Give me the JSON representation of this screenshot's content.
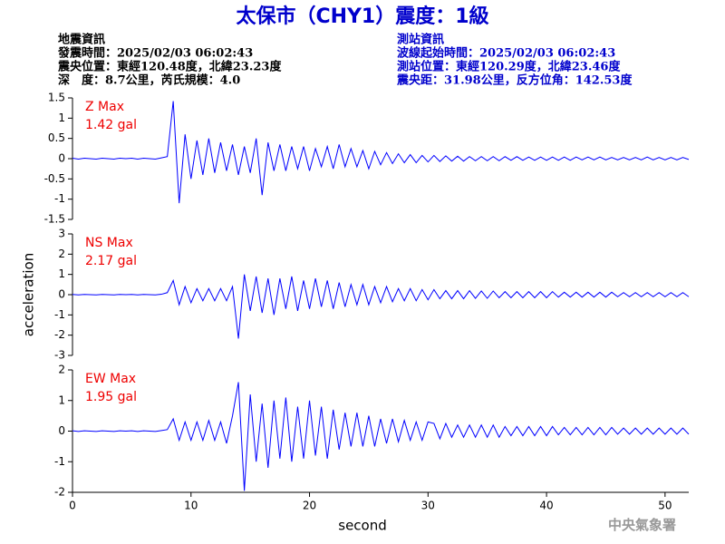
{
  "chart_data": {
    "type": "line",
    "title": "太保市（CHY1）震度：1級",
    "xlabel": "second",
    "ylabel": "acceleration",
    "xlim": [
      0,
      52
    ],
    "xticks": [
      0,
      10,
      20,
      30,
      40,
      50
    ],
    "x": [
      0,
      0.5,
      1,
      1.5,
      2,
      2.5,
      3,
      3.5,
      4,
      4.5,
      5,
      5.5,
      6,
      6.5,
      7,
      7.5,
      8,
      8.5,
      9,
      9.5,
      10,
      10.5,
      11,
      11.5,
      12,
      12.5,
      13,
      13.5,
      14,
      14.5,
      15,
      15.5,
      16,
      16.5,
      17,
      17.5,
      18,
      18.5,
      19,
      19.5,
      20,
      20.5,
      21,
      21.5,
      22,
      22.5,
      23,
      23.5,
      24,
      24.5,
      25,
      25.5,
      26,
      26.5,
      27,
      27.5,
      28,
      28.5,
      29,
      29.5,
      30,
      30.5,
      31,
      31.5,
      32,
      32.5,
      33,
      33.5,
      34,
      34.5,
      35,
      35.5,
      36,
      36.5,
      37,
      37.5,
      38,
      38.5,
      39,
      39.5,
      40,
      40.5,
      41,
      41.5,
      42,
      42.5,
      43,
      43.5,
      44,
      44.5,
      45,
      45.5,
      46,
      46.5,
      47,
      47.5,
      48,
      48.5,
      49,
      49.5,
      50,
      50.5,
      51,
      51.5,
      52
    ],
    "series": [
      {
        "name": "Z Max",
        "max_label": "1.42 gal",
        "color": "#0000ff",
        "label_color": "#ee0000",
        "ylim": [
          -1.5,
          1.5
        ],
        "yticks": [
          1.5,
          1,
          0.5,
          0,
          -0.5,
          -1,
          -1.5
        ],
        "values": [
          0.01,
          -0.01,
          0.01,
          0,
          -0.01,
          0.01,
          0,
          -0.01,
          0.01,
          0,
          0.01,
          -0.01,
          0.01,
          0,
          -0.01,
          0.02,
          0.05,
          1.42,
          -1.1,
          0.6,
          -0.5,
          0.45,
          -0.4,
          0.5,
          -0.35,
          0.4,
          -0.3,
          0.35,
          -0.4,
          0.3,
          -0.35,
          0.5,
          -0.9,
          0.4,
          -0.3,
          0.35,
          -0.3,
          0.3,
          -0.25,
          0.3,
          -0.3,
          0.25,
          -0.2,
          0.3,
          -0.25,
          0.35,
          -0.2,
          0.25,
          -0.2,
          0.2,
          -0.25,
          0.18,
          -0.15,
          0.15,
          -0.12,
          0.12,
          -0.1,
          0.1,
          -0.1,
          0.08,
          -0.08,
          0.08,
          -0.07,
          0.07,
          -0.06,
          0.06,
          -0.06,
          0.05,
          -0.05,
          0.05,
          -0.05,
          0.05,
          -0.05,
          0.05,
          -0.04,
          0.05,
          -0.04,
          0.04,
          -0.04,
          0.04,
          -0.04,
          0.04,
          -0.04,
          0.04,
          -0.04,
          0.04,
          -0.03,
          0.04,
          -0.03,
          0.04,
          -0.03,
          0.03,
          -0.03,
          0.03,
          -0.03,
          0.03,
          -0.03,
          0.04,
          -0.03,
          0.03,
          -0.03,
          0.03,
          -0.03,
          0.03,
          -0.02
        ]
      },
      {
        "name": "NS Max",
        "max_label": "2.17 gal",
        "color": "#0000ff",
        "label_color": "#ee0000",
        "ylim": [
          -3,
          3
        ],
        "yticks": [
          3,
          2,
          1,
          0,
          -1,
          -2,
          -3
        ],
        "values": [
          0.01,
          -0.01,
          0.01,
          0,
          -0.01,
          0.01,
          0,
          -0.01,
          0.01,
          0,
          0.01,
          -0.01,
          0.01,
          0,
          -0.01,
          0.02,
          0.1,
          0.7,
          -0.5,
          0.4,
          -0.4,
          0.3,
          -0.3,
          0.3,
          -0.3,
          0.3,
          -0.3,
          0.4,
          -2.17,
          1.0,
          -0.8,
          0.9,
          -0.9,
          0.8,
          -1.0,
          0.8,
          -0.7,
          0.9,
          -0.8,
          0.7,
          -0.7,
          0.8,
          -0.6,
          0.7,
          -0.7,
          0.6,
          -0.6,
          0.5,
          -0.5,
          0.5,
          -0.5,
          0.4,
          -0.4,
          0.4,
          -0.35,
          0.3,
          -0.3,
          0.3,
          -0.3,
          0.25,
          -0.25,
          0.25,
          -0.2,
          0.2,
          -0.2,
          0.2,
          -0.2,
          0.2,
          -0.18,
          0.18,
          -0.18,
          0.18,
          -0.15,
          0.15,
          -0.15,
          0.15,
          -0.15,
          0.15,
          -0.15,
          0.15,
          -0.15,
          0.15,
          -0.12,
          0.12,
          -0.12,
          0.12,
          -0.12,
          0.12,
          -0.12,
          0.12,
          -0.12,
          0.12,
          -0.1,
          0.1,
          -0.1,
          0.1,
          -0.1,
          0.1,
          -0.1,
          0.1,
          -0.1,
          0.1,
          -0.1,
          0.1,
          -0.1
        ]
      },
      {
        "name": "EW Max",
        "max_label": "1.95 gal",
        "color": "#0000ff",
        "label_color": "#ee0000",
        "ylim": [
          -2,
          2
        ],
        "yticks": [
          2,
          1,
          0,
          -1,
          -2
        ],
        "values": [
          0.01,
          -0.01,
          0.01,
          0,
          -0.01,
          0.01,
          0,
          -0.01,
          0.01,
          0,
          0.01,
          -0.01,
          0.01,
          0,
          -0.01,
          0.02,
          0.05,
          0.4,
          -0.3,
          0.3,
          -0.3,
          0.3,
          -0.3,
          0.35,
          -0.3,
          0.3,
          -0.4,
          0.5,
          1.6,
          -1.95,
          1.2,
          -1.0,
          0.9,
          -1.2,
          1.0,
          -0.9,
          1.1,
          -1.0,
          0.8,
          -0.9,
          1.0,
          -0.8,
          0.8,
          -0.9,
          0.7,
          -0.6,
          0.6,
          -0.5,
          0.6,
          -0.5,
          0.5,
          -0.5,
          0.4,
          -0.4,
          0.4,
          -0.35,
          0.35,
          -0.3,
          0.3,
          -0.3,
          0.3,
          0.25,
          -0.25,
          0.25,
          -0.2,
          0.2,
          -0.2,
          0.2,
          -0.2,
          0.2,
          -0.2,
          0.2,
          -0.2,
          0.15,
          -0.15,
          0.15,
          -0.15,
          0.15,
          -0.15,
          0.15,
          -0.15,
          0.15,
          -0.12,
          0.12,
          -0.12,
          0.12,
          -0.12,
          0.12,
          -0.12,
          0.12,
          -0.12,
          0.12,
          -0.1,
          0.1,
          -0.1,
          0.1,
          -0.1,
          0.1,
          -0.1,
          0.1,
          -0.1,
          0.1,
          -0.1,
          0.1,
          -0.1
        ]
      }
    ]
  },
  "info": {
    "left": [
      "地震資訊",
      "發震時間：2025/02/03 06:02:43",
      "震央位置：東經120.48度，北緯23.23度",
      "深　度：8.7公里，芮氏規模：4.0"
    ],
    "right": [
      "測站資訊",
      "波線起始時間：2025/02/03 06:02:43",
      "測站位置：東經120.29度，北緯23.46度",
      "震央距：31.98公里，反方位角：142.53度"
    ]
  },
  "footer": "中央氣象署"
}
